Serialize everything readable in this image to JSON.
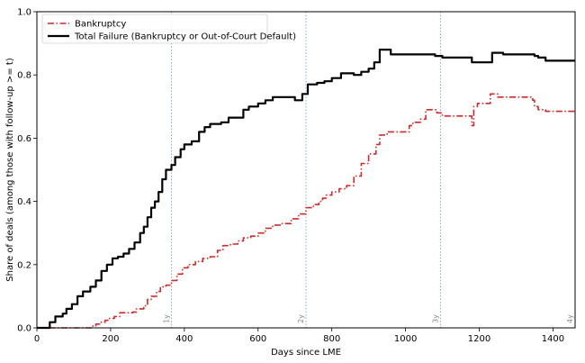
{
  "chart_data": {
    "type": "line",
    "title": "",
    "xlabel": "Days since LME",
    "ylabel": "Share of deals (among those with follow-up >= t)",
    "xlim": [
      0,
      1460
    ],
    "ylim": [
      0,
      1.0
    ],
    "xticks": [
      0,
      200,
      400,
      600,
      800,
      1000,
      1200,
      1400
    ],
    "yticks": [
      0.0,
      0.2,
      0.4,
      0.6,
      0.8,
      1.0
    ],
    "xtick_labels": [
      "0",
      "200",
      "400",
      "600",
      "800",
      "1000",
      "1200",
      "1400"
    ],
    "ytick_labels": [
      "0.0",
      "0.2",
      "0.4",
      "0.6",
      "0.8",
      "1.0"
    ],
    "grid": false,
    "legend_position": "top-left",
    "reference_lines": [
      {
        "x": 365,
        "label": "1y",
        "color": "#7fb2d6"
      },
      {
        "x": 730,
        "label": "2y",
        "color": "#7fb2d6"
      },
      {
        "x": 1095,
        "label": "3y",
        "color": "#7fb2d6"
      },
      {
        "x": 1460,
        "label": "4y",
        "color": "#7fb2d6"
      }
    ],
    "series": [
      {
        "name": "Bankruptcy",
        "color": "#d62728",
        "style": "dashdot",
        "points": [
          [
            0,
            0.0
          ],
          [
            130,
            0.0
          ],
          [
            150,
            0.006
          ],
          [
            160,
            0.012
          ],
          [
            170,
            0.018
          ],
          [
            185,
            0.024
          ],
          [
            195,
            0.03
          ],
          [
            210,
            0.036
          ],
          [
            225,
            0.048
          ],
          [
            260,
            0.05
          ],
          [
            270,
            0.06
          ],
          [
            290,
            0.07
          ],
          [
            300,
            0.09
          ],
          [
            310,
            0.1
          ],
          [
            325,
            0.115
          ],
          [
            335,
            0.13
          ],
          [
            350,
            0.135
          ],
          [
            365,
            0.15
          ],
          [
            380,
            0.17
          ],
          [
            395,
            0.19
          ],
          [
            410,
            0.2
          ],
          [
            430,
            0.21
          ],
          [
            450,
            0.22
          ],
          [
            470,
            0.225
          ],
          [
            490,
            0.245
          ],
          [
            505,
            0.26
          ],
          [
            525,
            0.265
          ],
          [
            545,
            0.275
          ],
          [
            560,
            0.285
          ],
          [
            580,
            0.29
          ],
          [
            600,
            0.3
          ],
          [
            620,
            0.315
          ],
          [
            640,
            0.325
          ],
          [
            665,
            0.33
          ],
          [
            690,
            0.345
          ],
          [
            710,
            0.36
          ],
          [
            730,
            0.38
          ],
          [
            750,
            0.39
          ],
          [
            765,
            0.4
          ],
          [
            775,
            0.41
          ],
          [
            785,
            0.42
          ],
          [
            800,
            0.43
          ],
          [
            820,
            0.44
          ],
          [
            840,
            0.45
          ],
          [
            860,
            0.48
          ],
          [
            880,
            0.52
          ],
          [
            900,
            0.55
          ],
          [
            920,
            0.58
          ],
          [
            930,
            0.61
          ],
          [
            950,
            0.62
          ],
          [
            1000,
            0.62
          ],
          [
            1010,
            0.64
          ],
          [
            1020,
            0.65
          ],
          [
            1040,
            0.66
          ],
          [
            1055,
            0.69
          ],
          [
            1085,
            0.68
          ],
          [
            1100,
            0.67
          ],
          [
            1160,
            0.67
          ],
          [
            1180,
            0.64
          ],
          [
            1185,
            0.7
          ],
          [
            1195,
            0.71
          ],
          [
            1220,
            0.71
          ],
          [
            1230,
            0.74
          ],
          [
            1250,
            0.73
          ],
          [
            1330,
            0.73
          ],
          [
            1345,
            0.72
          ],
          [
            1350,
            0.7
          ],
          [
            1360,
            0.69
          ],
          [
            1380,
            0.685
          ],
          [
            1460,
            0.685
          ]
        ]
      },
      {
        "name": "Total Failure (Bankruptcy or Out-of-Court Default)",
        "color": "#000000",
        "style": "solid",
        "points": [
          [
            0,
            0.0
          ],
          [
            20,
            0.0
          ],
          [
            35,
            0.018
          ],
          [
            50,
            0.036
          ],
          [
            70,
            0.045
          ],
          [
            80,
            0.06
          ],
          [
            95,
            0.075
          ],
          [
            110,
            0.1
          ],
          [
            125,
            0.115
          ],
          [
            145,
            0.13
          ],
          [
            160,
            0.15
          ],
          [
            175,
            0.18
          ],
          [
            190,
            0.2
          ],
          [
            205,
            0.22
          ],
          [
            220,
            0.225
          ],
          [
            235,
            0.235
          ],
          [
            250,
            0.25
          ],
          [
            265,
            0.27
          ],
          [
            280,
            0.3
          ],
          [
            290,
            0.32
          ],
          [
            300,
            0.35
          ],
          [
            310,
            0.38
          ],
          [
            320,
            0.4
          ],
          [
            330,
            0.43
          ],
          [
            340,
            0.47
          ],
          [
            350,
            0.5
          ],
          [
            365,
            0.515
          ],
          [
            375,
            0.54
          ],
          [
            390,
            0.565
          ],
          [
            400,
            0.58
          ],
          [
            420,
            0.59
          ],
          [
            440,
            0.62
          ],
          [
            455,
            0.635
          ],
          [
            470,
            0.645
          ],
          [
            500,
            0.65
          ],
          [
            520,
            0.665
          ],
          [
            540,
            0.665
          ],
          [
            560,
            0.69
          ],
          [
            575,
            0.7
          ],
          [
            600,
            0.71
          ],
          [
            620,
            0.72
          ],
          [
            640,
            0.73
          ],
          [
            680,
            0.73
          ],
          [
            700,
            0.72
          ],
          [
            720,
            0.74
          ],
          [
            735,
            0.77
          ],
          [
            760,
            0.775
          ],
          [
            780,
            0.78
          ],
          [
            800,
            0.79
          ],
          [
            825,
            0.805
          ],
          [
            860,
            0.8
          ],
          [
            880,
            0.81
          ],
          [
            900,
            0.82
          ],
          [
            915,
            0.84
          ],
          [
            930,
            0.88
          ],
          [
            960,
            0.865
          ],
          [
            1060,
            0.865
          ],
          [
            1080,
            0.86
          ],
          [
            1100,
            0.855
          ],
          [
            1160,
            0.855
          ],
          [
            1180,
            0.84
          ],
          [
            1220,
            0.84
          ],
          [
            1235,
            0.87
          ],
          [
            1265,
            0.865
          ],
          [
            1350,
            0.86
          ],
          [
            1360,
            0.855
          ],
          [
            1380,
            0.845
          ],
          [
            1460,
            0.845
          ]
        ]
      }
    ]
  }
}
